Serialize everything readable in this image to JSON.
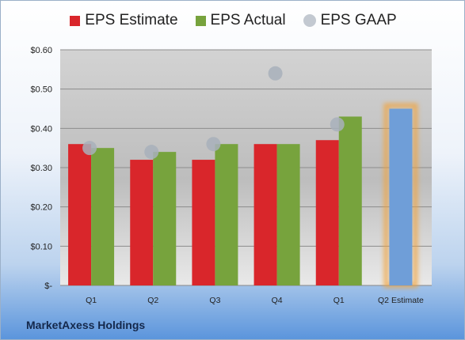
{
  "legend": [
    {
      "label": "EPS Estimate",
      "color": "#d9262b",
      "shape": "square"
    },
    {
      "label": "EPS Actual",
      "color": "#77a33d",
      "shape": "square"
    },
    {
      "label": "EPS GAAP",
      "color": "#a8b0bb",
      "shape": "circle"
    }
  ],
  "footer": {
    "company": "MarketAxess Holdings"
  },
  "chart_data": {
    "type": "bar",
    "categories": [
      "Q1",
      "Q2",
      "Q3",
      "Q4",
      "Q1",
      "Q2 Estimate"
    ],
    "ylim": [
      0,
      0.6
    ],
    "yticks": [
      0,
      0.1,
      0.2,
      0.3,
      0.4,
      0.5,
      0.6
    ],
    "ytick_labels": [
      "$-",
      "$0.10",
      "$0.20",
      "$0.30",
      "$0.40",
      "$0.50",
      "$0.60"
    ],
    "grid": true,
    "legend_position": "top",
    "series": [
      {
        "name": "EPS Estimate",
        "type": "bar",
        "color": "#d9262b",
        "values": [
          0.36,
          0.32,
          0.32,
          0.36,
          0.37,
          null
        ]
      },
      {
        "name": "EPS Actual",
        "type": "bar",
        "color": "#77a33d",
        "values": [
          0.35,
          0.34,
          0.36,
          0.36,
          0.43,
          null
        ]
      },
      {
        "name": "EPS GAAP",
        "type": "scatter",
        "color": "#a8b0bb",
        "values": [
          0.35,
          0.34,
          0.36,
          0.54,
          0.41,
          null
        ]
      },
      {
        "name": "Q2 Estimate",
        "type": "bar",
        "color": "#6f9ed8",
        "highlight": "#f2a33a",
        "values": [
          null,
          null,
          null,
          null,
          null,
          0.45
        ]
      }
    ]
  }
}
